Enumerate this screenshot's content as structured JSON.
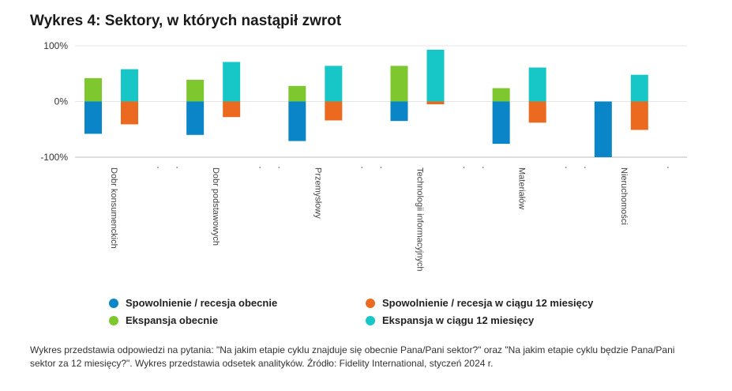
{
  "chart_data": {
    "type": "bar",
    "title": "Wykres 4: Sektory, w których nastąpił zwrot",
    "categories": [
      "Dobr konsumenckich",
      "Dobr podstawowych",
      "Przemysłowy",
      "Technologii informacyjnych",
      "Materiałów",
      "Nieruchomości"
    ],
    "series": [
      {
        "name": "Spowolnienie / recesja obecnie",
        "color": "#0a86c8",
        "values": [
          -58,
          -60,
          -71,
          -35,
          -76,
          -100
        ]
      },
      {
        "name": "Ekspansja obecnie",
        "color": "#7fc72e",
        "values": [
          42,
          39,
          28,
          64,
          24,
          0
        ]
      },
      {
        "name": "Spowolnienie / recesja w ciągu 12 miesięcy",
        "color": "#eb6a1f",
        "values": [
          -41,
          -28,
          -34,
          -5,
          -38,
          -51
        ]
      },
      {
        "name": "Ekspansja w ciągu 12 miesięcy",
        "color": "#17c6c6",
        "values": [
          58,
          71,
          64,
          93,
          61,
          48
        ]
      }
    ],
    "yticks": [
      "100%",
      "0%",
      "-100%"
    ],
    "ytick_values": [
      100,
      0,
      -100
    ],
    "ylim": [
      -100,
      100
    ],
    "grid": true,
    "legend_placement": "bottom"
  },
  "legend": [
    {
      "label": "Spowolnienie / recesja obecnie",
      "color": "#0a86c8"
    },
    {
      "label": "Spowolnienie / recesja w ciągu 12 miesięcy",
      "color": "#eb6a1f"
    },
    {
      "label": "Ekspansja obecnie",
      "color": "#7fc72e"
    },
    {
      "label": "Ekspansja w ciągu 12 miesięcy",
      "color": "#17c6c6"
    }
  ],
  "footnote": "Wykres przedstawia odpowiedzi na pytania: \"Na jakim etapie cyklu znajduje się obecnie Pana/Pani sektor?\" oraz \"Na jakim etapie cyklu będzie Pana/Pani sektor za 12 miesięcy?\". Wykres przedstawia odsetek analityków. Źródło: Fidelity International, styczeń 2024 r."
}
